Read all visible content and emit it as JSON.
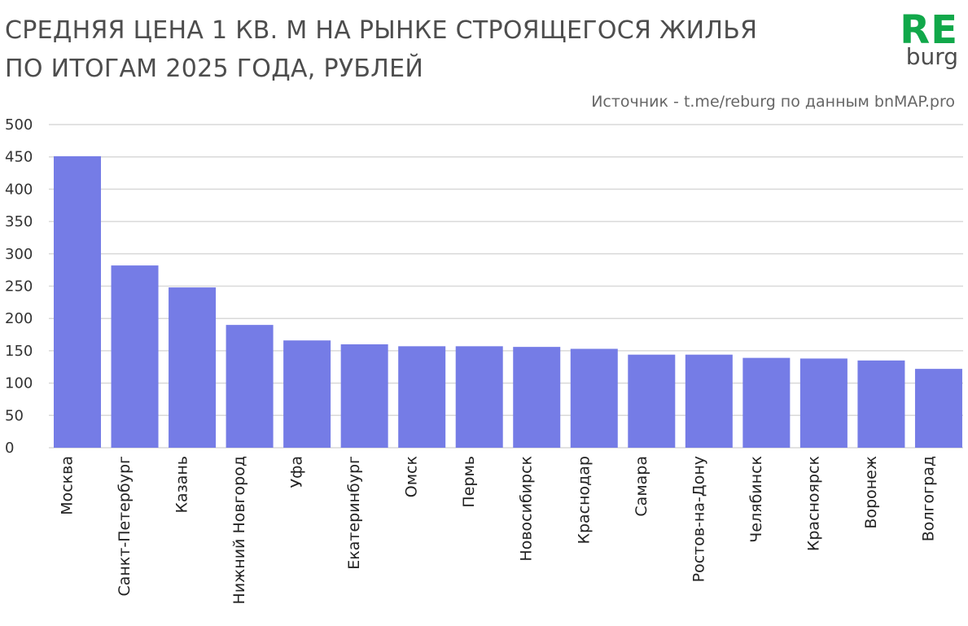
{
  "header": {
    "title_line1": "СРЕДНЯЯ ЦЕНА 1 КВ. М НА РЫНКЕ СТРОЯЩЕГОСЯ ЖИЛЬЯ",
    "title_line2": "ПО ИТОГАМ 2025 ГОДА, РУБЛЕЙ",
    "logo_top": "RE",
    "logo_bottom": "burg",
    "source": "Источник - t.me/reburg по данным bnMAP.pro"
  },
  "colors": {
    "bar": "#757ce6",
    "grid": "#d9d9d9",
    "logo_accent": "#11a84a"
  },
  "chart_data": {
    "type": "bar",
    "title": "СРЕДНЯЯ ЦЕНА 1 КВ. М НА РЫНКЕ СТРОЯЩЕГОСЯ ЖИЛЬЯ ПО ИТОГАМ 2025 ГОДА, РУБЛЕЙ",
    "xlabel": "",
    "ylabel": "",
    "ylim": [
      0,
      500
    ],
    "yticks": [
      0,
      50,
      100,
      150,
      200,
      250,
      300,
      350,
      400,
      450,
      500
    ],
    "grid": true,
    "legend": "none",
    "categories": [
      "Москва",
      "Санкт-Петербург",
      "Казань",
      "Нижний Новгород",
      "Уфа",
      "Екатеринбург",
      "Омск",
      "Пермь",
      "Новосибирск",
      "Краснодар",
      "Самара",
      "Ростов-на-Дону",
      "Челябинск",
      "Красноярск",
      "Воронеж",
      "Волгоград"
    ],
    "values": [
      451,
      282,
      248,
      190,
      166,
      160,
      157,
      157,
      156,
      153,
      144,
      144,
      139,
      138,
      135,
      122
    ]
  }
}
